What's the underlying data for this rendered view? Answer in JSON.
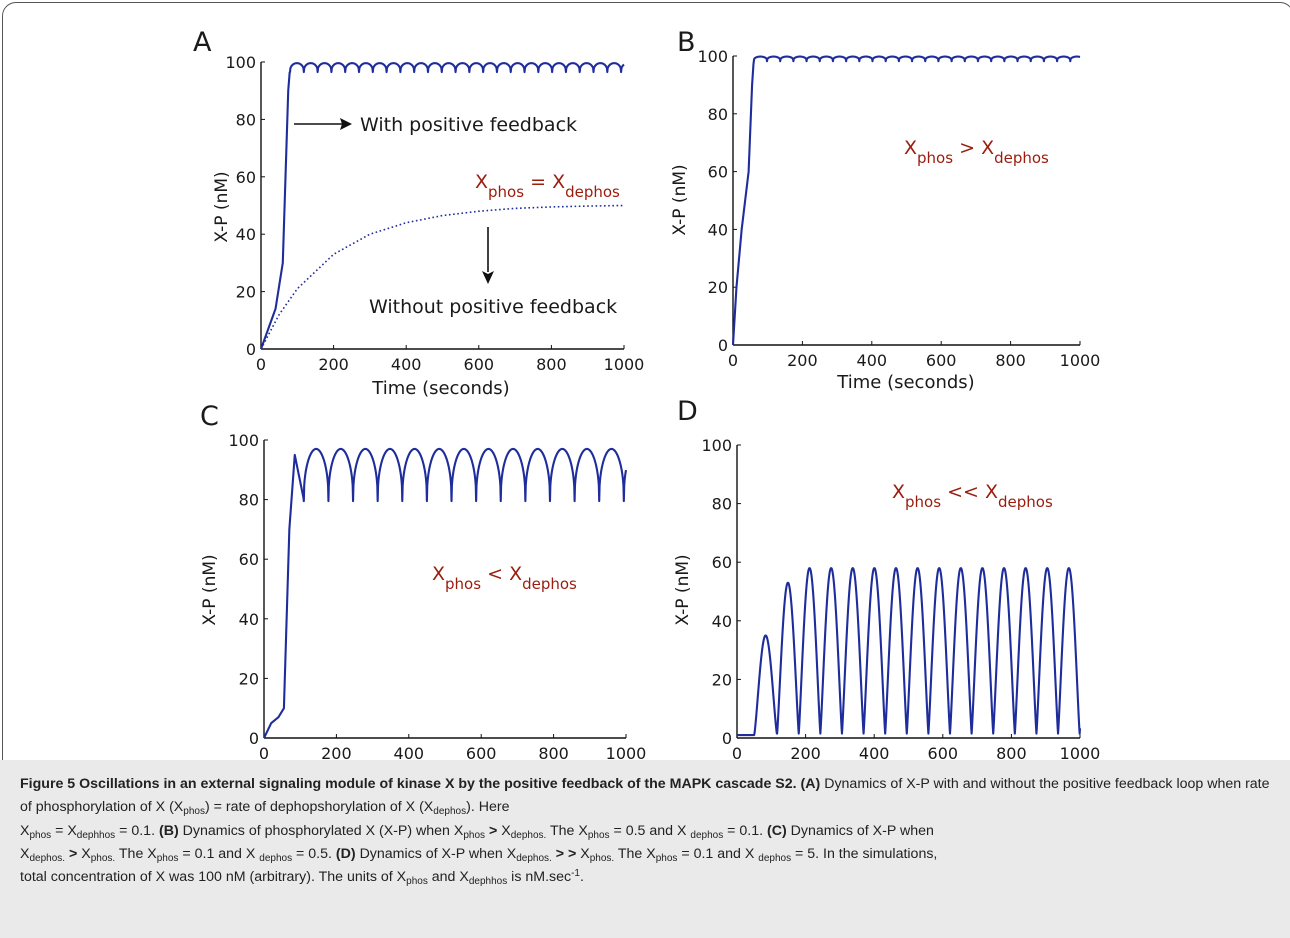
{
  "colors": {
    "line": "#1f2d9c",
    "annotation": "#9b1c0c",
    "text": "#1a1a1a",
    "caption_bg": "#eaeaea"
  },
  "panels": [
    {
      "letter": "A",
      "annotations": [
        "With positive feedback",
        "Without positive feedback"
      ]
    },
    {
      "letter": "B",
      "annotations": []
    },
    {
      "letter": "C",
      "annotations": []
    },
    {
      "letter": "D",
      "annotations": []
    }
  ],
  "chart_data": [
    {
      "panel": "A",
      "type": "line",
      "xlabel": "Time (seconds)",
      "ylabel": "X-P (nM)",
      "xlim": [
        0,
        1000
      ],
      "ylim": [
        0,
        100
      ],
      "xticks": [
        0,
        200,
        400,
        600,
        800,
        1000
      ],
      "yticks": [
        0,
        20,
        40,
        60,
        80,
        100
      ],
      "condition": {
        "base": "X",
        "sub1": "phos",
        "op": "=",
        "sub2": "dephos"
      },
      "series": [
        {
          "name": "With positive feedback",
          "style": "solid",
          "x": [
            0,
            20,
            40,
            60,
            75,
            80,
            100,
            200,
            400,
            600,
            800,
            1000
          ],
          "y": [
            0,
            7,
            14,
            30,
            90,
            98,
            99,
            99,
            99,
            99,
            99,
            97
          ],
          "oscillation": {
            "start": 80,
            "period": 38,
            "max": 99.6,
            "min": 96.5
          }
        },
        {
          "name": "Without positive feedback",
          "style": "dotted",
          "x": [
            0,
            50,
            100,
            200,
            300,
            400,
            500,
            600,
            700,
            800,
            900,
            1000
          ],
          "y": [
            0,
            12,
            21,
            33,
            40,
            44,
            46.5,
            48,
            49,
            49.5,
            49.8,
            50
          ]
        }
      ]
    },
    {
      "panel": "B",
      "type": "line",
      "xlabel": "Time (seconds)",
      "ylabel": "X-P (nM)",
      "xlim": [
        0,
        1000
      ],
      "ylim": [
        0,
        100
      ],
      "xticks": [
        0,
        200,
        400,
        600,
        800,
        1000
      ],
      "yticks": [
        0,
        20,
        40,
        60,
        80,
        100
      ],
      "condition": {
        "base": "X",
        "sub1": "phos",
        "op": ">",
        "sub2": "dephos"
      },
      "series": [
        {
          "style": "solid",
          "x": [
            0,
            10,
            25,
            45,
            55,
            60,
            100,
            1000
          ],
          "y": [
            0,
            20,
            40,
            60,
            90,
            99,
            99.5,
            99
          ],
          "oscillation": {
            "start": 60,
            "period": 38,
            "max": 99.8,
            "min": 98.2
          }
        }
      ]
    },
    {
      "panel": "C",
      "type": "line",
      "xlabel": "Time  (seconds)",
      "ylabel": "X-P (nM)",
      "xlim": [
        0,
        1000
      ],
      "ylim": [
        0,
        100
      ],
      "xticks": [
        0,
        200,
        400,
        600,
        800,
        1000
      ],
      "yticks": [
        0,
        20,
        40,
        60,
        80,
        100
      ],
      "condition": {
        "base": "X",
        "sub1": "phos",
        "op": "<",
        "sub2": "dephos"
      },
      "series": [
        {
          "style": "solid",
          "x": [
            0,
            20,
            40,
            55,
            70,
            85,
            110,
            155,
            1000
          ],
          "y": [
            0,
            5,
            7,
            10,
            70,
            95,
            80,
            97,
            80
          ],
          "oscillation": {
            "start": 110,
            "period": 68,
            "max": 97,
            "min": 79.5
          }
        }
      ]
    },
    {
      "panel": "D",
      "type": "line",
      "xlabel": "Time (seconds)",
      "ylabel": "X-P (nM)",
      "xlim": [
        0,
        1000
      ],
      "ylim": [
        0,
        100
      ],
      "xticks": [
        0,
        200,
        400,
        600,
        800,
        1000
      ],
      "yticks": [
        0,
        20,
        40,
        60,
        80,
        100
      ],
      "condition": {
        "base": "X",
        "sub1": "phos",
        "op": "<<",
        "sub2": "dephos"
      },
      "series": [
        {
          "style": "solid",
          "x": [
            0,
            50,
            87,
            117,
            150,
            212,
            1000
          ],
          "y": [
            1,
            1,
            35,
            2,
            53,
            58,
            2
          ],
          "oscillation": {
            "start": 117,
            "period": 63,
            "max": 58,
            "min": 1.5,
            "peaks_first": [
              35,
              53
            ]
          }
        }
      ]
    }
  ],
  "caption": {
    "title": "Figure 5 Oscillations in an external signaling module of kinase X by the positive feedback of the MAPK cascade S2.",
    "A_label": "(A)",
    "A_text_1": "Dynamics of X-P with and without the positive feedback loop when rate of phosphorylation of X (X",
    "A_sub_phos": "phos",
    "A_text_2": ") = rate of dephopshorylation of X (X",
    "A_sub_dephos": "dephos",
    "A_text_3": "). Here",
    "A_eq_x1": "X",
    "A_eq_sub1": "phos",
    "A_eq_mid": " = X",
    "A_eq_sub2": "dephhos",
    "A_eq_end": " = 0.1.",
    "B_label": "(B)",
    "B_text_1": "Dynamics of phosphorylated X (X-P) when X",
    "B_sub1": "phos",
    "B_gt": ">",
    "B_text_2": "X",
    "B_sub2": "dephos.",
    "B_text_3": " The X",
    "B_sub3": "phos",
    "B_text_4": " = 0.5 and X ",
    "B_sub4": "dephos",
    "B_text_5": " = 0.1.",
    "C_label": "(C)",
    "C_text_1": "Dynamics of X-P when",
    "C_x1": "X",
    "C_sub1": "dephos.",
    "C_gt": ">",
    "C_text_2": "X",
    "C_sub2": "phos.",
    "C_text_3": " The X",
    "C_sub3": "phos",
    "C_text_4": " = 0.1 and X ",
    "C_sub4": "dephos",
    "C_text_5": " = 0.5.",
    "D_label": "(D)",
    "D_text_1": "Dynamics of X-P when X",
    "D_sub1": "dephos.",
    "D_gg": "> >",
    "D_text_2": "X",
    "D_sub2": "phos.",
    "D_text_3": " The X",
    "D_sub3": "phos",
    "D_text_4": " = 0.1 and X ",
    "D_sub4": "dephos",
    "D_text_5": " = 5. In the simulations,",
    "E_text_1": "total concentration of X was 100 nM (arbitrary). The units of X",
    "E_sub1": "phos",
    "E_text_2": " and X",
    "E_sub2": "dephhos",
    "E_text_3": " is nM.sec",
    "E_sup": "-1",
    "E_text_4": "."
  }
}
